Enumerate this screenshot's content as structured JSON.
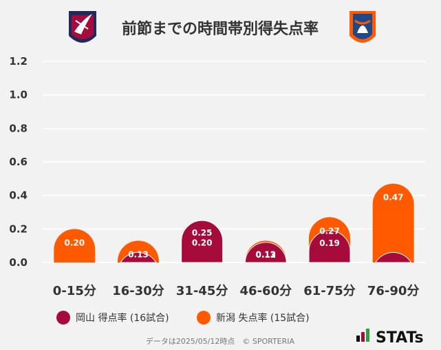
{
  "title": "前節までの時間帯別得失点率",
  "colors": {
    "okayama": "#a50c3c",
    "niigata": "#ff5a00",
    "background": "#f2f2f2",
    "grid": "#ffffff"
  },
  "logos": {
    "left": "okayama-crest-icon",
    "right": "niigata-crest-icon"
  },
  "chart_data": {
    "type": "bar",
    "title": "前節までの時間帯別得失点率",
    "categories": [
      "0-15分",
      "16-30分",
      "31-45分",
      "46-60分",
      "61-75分",
      "76-90分"
    ],
    "series": [
      {
        "name": "岡山 得点率 (16試合)",
        "values": [
          0.0,
          0.06,
          0.25,
          0.12,
          0.19,
          0.06
        ],
        "labels": [
          "",
          "",
          "0.25",
          "0.12",
          "0.19",
          ""
        ]
      },
      {
        "name": "新潟 失点率 (15試合)",
        "values": [
          0.2,
          0.13,
          0.2,
          0.13,
          0.27,
          0.47
        ],
        "labels": [
          "0.20",
          "0.13",
          "0.20",
          "0.13",
          "0.27",
          "0.47"
        ]
      }
    ],
    "ylim": [
      0,
      1.2
    ],
    "yticks": [
      "0.0",
      "0.2",
      "0.4",
      "0.6",
      "0.8",
      "1.0",
      "1.2"
    ],
    "grid": true,
    "legend_position": "bottom-left"
  },
  "legend": [
    {
      "label": "岡山 得点率 (16試合)",
      "color": "#a50c3c"
    },
    {
      "label": "新潟 失点率 (15試合)",
      "color": "#ff5a00"
    }
  ],
  "footer": "データは2025/05/12時点　© SPORTERIA",
  "brand": "STATs"
}
